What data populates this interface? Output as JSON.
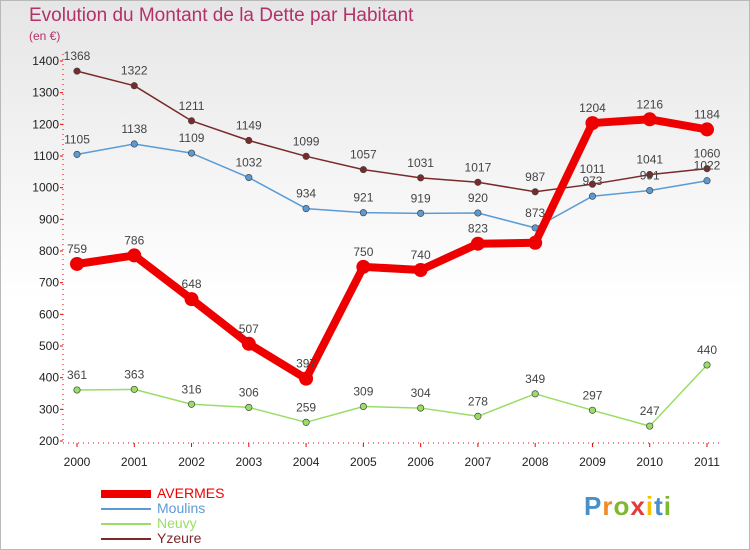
{
  "title": "Evolution du Montant de la Dette par Habitant",
  "subtitle": "(en €)",
  "logo": {
    "text": "Proxiti",
    "letter_colors": [
      "#4a90c8",
      "#f08a24",
      "#7fb82e",
      "#e23b3b",
      "#f5c200",
      "#4a90c8",
      "#7fb82e"
    ]
  },
  "chart_data": {
    "type": "line",
    "title": "Evolution du Montant de la Dette par Habitant",
    "subtitle": "(en €)",
    "xlabel": "",
    "ylabel": "",
    "categories": [
      "2000",
      "2001",
      "2002",
      "2003",
      "2004",
      "2005",
      "2006",
      "2007",
      "2008",
      "2009",
      "2010",
      "2011"
    ],
    "ylim": [
      200,
      1400
    ],
    "yticks": [
      "200",
      "300",
      "400",
      "500",
      "600",
      "700",
      "800",
      "900",
      "1000",
      "1100",
      "1200",
      "1300",
      "1400"
    ],
    "legend_position": "bottom-left",
    "grid": false,
    "series": [
      {
        "name": "AVERMES",
        "color": "#ee0000",
        "values": [
          759,
          786,
          648,
          507,
          397,
          750,
          740,
          823,
          826,
          1204,
          1216,
          1184
        ],
        "labels": [
          "759",
          "786",
          "648",
          "507",
          "397",
          "750",
          "740",
          "823",
          "",
          "1204",
          "1216",
          "1184"
        ]
      },
      {
        "name": "Moulins",
        "color": "#5b9bd5",
        "values": [
          1105,
          1138,
          1109,
          1032,
          934,
          921,
          919,
          920,
          873,
          973,
          991,
          1022
        ],
        "labels": [
          "1105",
          "1138",
          "1109",
          "1032",
          "934",
          "921",
          "919",
          "920",
          "873",
          "973",
          "991",
          "1022"
        ]
      },
      {
        "name": "Neuvy",
        "color": "#99dd66",
        "values": [
          361,
          363,
          316,
          306,
          259,
          309,
          304,
          278,
          349,
          297,
          247,
          440
        ],
        "labels": [
          "361",
          "363",
          "316",
          "306",
          "259",
          "309",
          "304",
          "278",
          "349",
          "297",
          "247",
          "440"
        ]
      },
      {
        "name": "Yzeure",
        "color": "#7a2a2a",
        "values": [
          1368,
          1322,
          1211,
          1149,
          1099,
          1057,
          1031,
          1017,
          987,
          1011,
          1041,
          1060
        ],
        "labels": [
          "1368",
          "1322",
          "1211",
          "1149",
          "1099",
          "1057",
          "1031",
          "1017",
          "987",
          "1011",
          "1041",
          "1060"
        ]
      }
    ]
  }
}
